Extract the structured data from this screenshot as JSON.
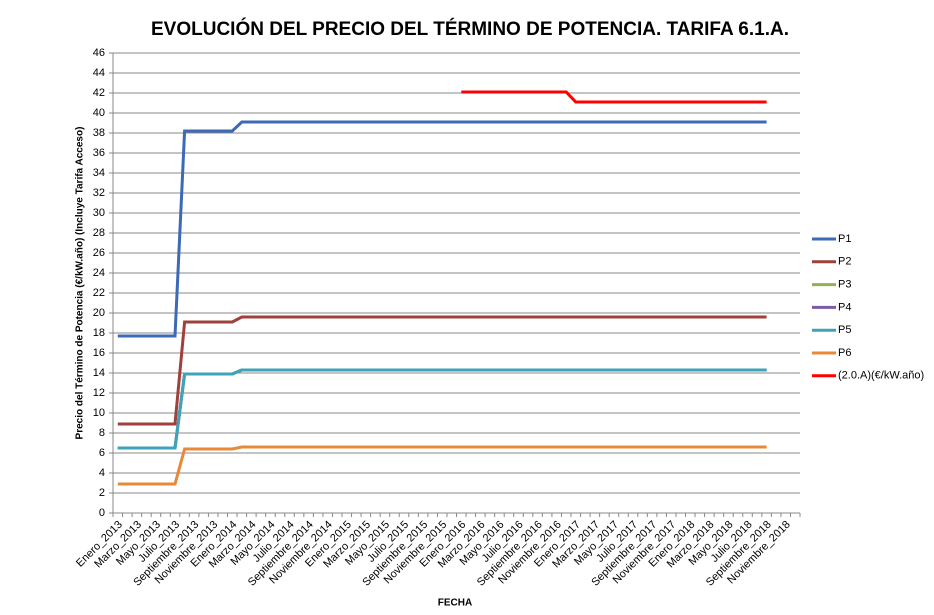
{
  "chart_data": {
    "type": "line",
    "title": "EVOLUCIÓN DEL PRECIO DEL TÉRMINO DE POTENCIA. TARIFA 6.1.A.",
    "y_label": "Precio del Término de Potencia (€/kW.año) (Incluye Tarifa Acceso)",
    "x_label": "FECHA",
    "categories": [
      "Enero_2013",
      null,
      "Marzo_2013",
      null,
      "Mayo_2013",
      null,
      "Julio_2013",
      null,
      "Septiembre_2013",
      null,
      "Noviembre_2013",
      null,
      "Enero_2014",
      null,
      "Marzo_2014",
      null,
      "Mayo_2014",
      null,
      "Julio_2014",
      null,
      "Septiembre_2014",
      null,
      "Noviembre_2014",
      null,
      "Enero_2015",
      null,
      "Marzo_2015",
      null,
      "Mayo_2015",
      null,
      "Julio_2015",
      null,
      "Septiembre_2015",
      null,
      "Noviembre_2015",
      null,
      "Enero_2016",
      null,
      "Marzo_2016",
      null,
      "Mayo_2016",
      null,
      "Julio_2016",
      null,
      "Septiembre_2016",
      null,
      "Noviembre_2016",
      null,
      "Enero_2017",
      null,
      "Marzo_2017",
      null,
      "Mayo_2017",
      null,
      "Julio_2017",
      null,
      "Septiembre_2017",
      null,
      "Noviembre_2017",
      null,
      "Enero_2018",
      null,
      "Marzo_2018",
      null,
      "Mayo_2018",
      null,
      "Julio_2018",
      null,
      "Septiembre_2018",
      null,
      "Noviembre_2018",
      null
    ],
    "series": [
      {
        "name": "P1",
        "color": "#3d6ab5",
        "values": [
          17.7,
          17.7,
          17.7,
          17.7,
          17.7,
          17.7,
          17.7,
          38.2,
          38.2,
          38.2,
          38.2,
          38.2,
          38.2,
          39.1,
          39.1,
          39.1,
          39.1,
          39.1,
          39.1,
          39.1,
          39.1,
          39.1,
          39.1,
          39.1,
          39.1,
          39.1,
          39.1,
          39.1,
          39.1,
          39.1,
          39.1,
          39.1,
          39.1,
          39.1,
          39.1,
          39.1,
          39.1,
          39.1,
          39.1,
          39.1,
          39.1,
          39.1,
          39.1,
          39.1,
          39.1,
          39.1,
          39.1,
          39.1,
          39.1,
          39.1,
          39.1,
          39.1,
          39.1,
          39.1,
          39.1,
          39.1,
          39.1,
          39.1,
          39.1,
          39.1,
          39.1,
          39.1,
          39.1,
          39.1,
          39.1,
          39.1,
          39.1,
          39.1,
          39.1,
          null,
          null,
          null
        ]
      },
      {
        "name": "P2",
        "color": "#a0403c",
        "values": [
          8.9,
          8.9,
          8.9,
          8.9,
          8.9,
          8.9,
          8.9,
          19.1,
          19.1,
          19.1,
          19.1,
          19.1,
          19.1,
          19.6,
          19.6,
          19.6,
          19.6,
          19.6,
          19.6,
          19.6,
          19.6,
          19.6,
          19.6,
          19.6,
          19.6,
          19.6,
          19.6,
          19.6,
          19.6,
          19.6,
          19.6,
          19.6,
          19.6,
          19.6,
          19.6,
          19.6,
          19.6,
          19.6,
          19.6,
          19.6,
          19.6,
          19.6,
          19.6,
          19.6,
          19.6,
          19.6,
          19.6,
          19.6,
          19.6,
          19.6,
          19.6,
          19.6,
          19.6,
          19.6,
          19.6,
          19.6,
          19.6,
          19.6,
          19.6,
          19.6,
          19.6,
          19.6,
          19.6,
          19.6,
          19.6,
          19.6,
          19.6,
          19.6,
          19.6,
          null,
          null,
          null
        ]
      },
      {
        "name": "P3",
        "color": "#8fb24a",
        "values": [
          6.5,
          6.5,
          6.5,
          6.5,
          6.5,
          6.5,
          6.5,
          13.9,
          13.9,
          13.9,
          13.9,
          13.9,
          13.9,
          14.3,
          14.3,
          14.3,
          14.3,
          14.3,
          14.3,
          14.3,
          14.3,
          14.3,
          14.3,
          14.3,
          14.3,
          14.3,
          14.3,
          14.3,
          14.3,
          14.3,
          14.3,
          14.3,
          14.3,
          14.3,
          14.3,
          14.3,
          14.3,
          14.3,
          14.3,
          14.3,
          14.3,
          14.3,
          14.3,
          14.3,
          14.3,
          14.3,
          14.3,
          14.3,
          14.3,
          14.3,
          14.3,
          14.3,
          14.3,
          14.3,
          14.3,
          14.3,
          14.3,
          14.3,
          14.3,
          14.3,
          14.3,
          14.3,
          14.3,
          14.3,
          14.3,
          14.3,
          14.3,
          14.3,
          14.3,
          null,
          null,
          null
        ]
      },
      {
        "name": "P4",
        "color": "#7c5ca6",
        "values": [
          6.5,
          6.5,
          6.5,
          6.5,
          6.5,
          6.5,
          6.5,
          13.9,
          13.9,
          13.9,
          13.9,
          13.9,
          13.9,
          14.3,
          14.3,
          14.3,
          14.3,
          14.3,
          14.3,
          14.3,
          14.3,
          14.3,
          14.3,
          14.3,
          14.3,
          14.3,
          14.3,
          14.3,
          14.3,
          14.3,
          14.3,
          14.3,
          14.3,
          14.3,
          14.3,
          14.3,
          14.3,
          14.3,
          14.3,
          14.3,
          14.3,
          14.3,
          14.3,
          14.3,
          14.3,
          14.3,
          14.3,
          14.3,
          14.3,
          14.3,
          14.3,
          14.3,
          14.3,
          14.3,
          14.3,
          14.3,
          14.3,
          14.3,
          14.3,
          14.3,
          14.3,
          14.3,
          14.3,
          14.3,
          14.3,
          14.3,
          14.3,
          14.3,
          14.3,
          null,
          null,
          null
        ]
      },
      {
        "name": "P5",
        "color": "#3ea3b8",
        "values": [
          6.5,
          6.5,
          6.5,
          6.5,
          6.5,
          6.5,
          6.5,
          13.9,
          13.9,
          13.9,
          13.9,
          13.9,
          13.9,
          14.3,
          14.3,
          14.3,
          14.3,
          14.3,
          14.3,
          14.3,
          14.3,
          14.3,
          14.3,
          14.3,
          14.3,
          14.3,
          14.3,
          14.3,
          14.3,
          14.3,
          14.3,
          14.3,
          14.3,
          14.3,
          14.3,
          14.3,
          14.3,
          14.3,
          14.3,
          14.3,
          14.3,
          14.3,
          14.3,
          14.3,
          14.3,
          14.3,
          14.3,
          14.3,
          14.3,
          14.3,
          14.3,
          14.3,
          14.3,
          14.3,
          14.3,
          14.3,
          14.3,
          14.3,
          14.3,
          14.3,
          14.3,
          14.3,
          14.3,
          14.3,
          14.3,
          14.3,
          14.3,
          14.3,
          14.3,
          null,
          null,
          null
        ]
      },
      {
        "name": "P6",
        "color": "#e8893a",
        "values": [
          2.9,
          2.9,
          2.9,
          2.9,
          2.9,
          2.9,
          2.9,
          6.4,
          6.4,
          6.4,
          6.4,
          6.4,
          6.4,
          6.6,
          6.6,
          6.6,
          6.6,
          6.6,
          6.6,
          6.6,
          6.6,
          6.6,
          6.6,
          6.6,
          6.6,
          6.6,
          6.6,
          6.6,
          6.6,
          6.6,
          6.6,
          6.6,
          6.6,
          6.6,
          6.6,
          6.6,
          6.6,
          6.6,
          6.6,
          6.6,
          6.6,
          6.6,
          6.6,
          6.6,
          6.6,
          6.6,
          6.6,
          6.6,
          6.6,
          6.6,
          6.6,
          6.6,
          6.6,
          6.6,
          6.6,
          6.6,
          6.6,
          6.6,
          6.6,
          6.6,
          6.6,
          6.6,
          6.6,
          6.6,
          6.6,
          6.6,
          6.6,
          6.6,
          6.6,
          null,
          null,
          null
        ]
      },
      {
        "name": "(2.0.A)(€/kW.año)",
        "color": "#ff0000",
        "values": [
          null,
          null,
          null,
          null,
          null,
          null,
          null,
          null,
          null,
          null,
          null,
          null,
          null,
          null,
          null,
          null,
          null,
          null,
          null,
          null,
          null,
          null,
          null,
          null,
          null,
          null,
          null,
          null,
          null,
          null,
          null,
          null,
          null,
          null,
          null,
          null,
          42.1,
          42.1,
          42.1,
          42.1,
          42.1,
          42.1,
          42.1,
          42.1,
          42.1,
          42.1,
          42.1,
          42.1,
          41.1,
          41.1,
          41.1,
          41.1,
          41.1,
          41.1,
          41.1,
          41.1,
          41.1,
          41.1,
          41.1,
          41.1,
          41.1,
          41.1,
          41.1,
          41.1,
          41.1,
          41.1,
          41.1,
          41.1,
          41.1,
          null,
          null,
          null
        ]
      }
    ],
    "ylim": [
      0,
      46
    ],
    "yticks": [
      0,
      2,
      4,
      6,
      8,
      10,
      12,
      14,
      16,
      18,
      20,
      22,
      24,
      26,
      28,
      30,
      32,
      34,
      36,
      38,
      40,
      42,
      44,
      46
    ],
    "grid": true,
    "legend": "right"
  }
}
